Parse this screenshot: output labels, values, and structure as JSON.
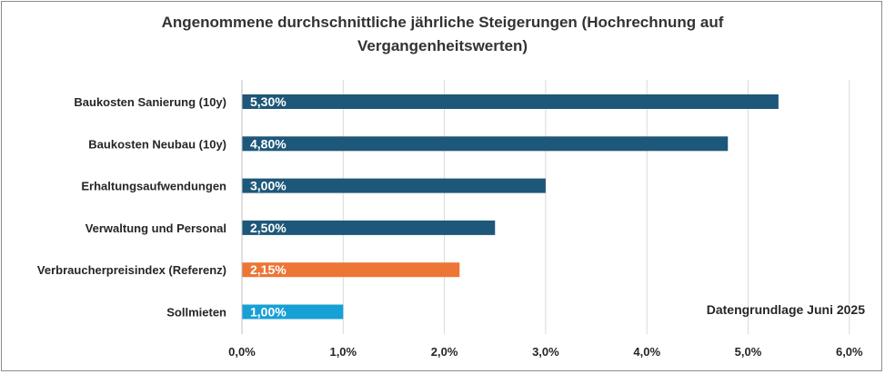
{
  "chart_data": {
    "type": "bar",
    "orientation": "horizontal",
    "title_lines": [
      "Angenommene durchschnittliche jährliche Steigerungen (Hochrechnung auf",
      "Vergangenheitswerten)"
    ],
    "categories": [
      "Baukosten Sanierung (10y)",
      "Baukosten Neubau (10y)",
      "Erhaltungsaufwendungen",
      "Verwaltung und Personal",
      "Verbraucherpreisindex (Referenz)",
      "Sollmieten"
    ],
    "values": [
      5.3,
      4.8,
      3.0,
      2.5,
      2.15,
      1.0
    ],
    "data_labels": [
      "5,30%",
      "4,80%",
      "3,00%",
      "2,50%",
      "2,15%",
      "1,00%"
    ],
    "colors": [
      "#1d5779",
      "#1d5779",
      "#1d5779",
      "#1d5779",
      "#ed7535",
      "#17a0d6"
    ],
    "x_ticks": [
      0,
      1,
      2,
      3,
      4,
      5,
      6
    ],
    "x_tick_labels": [
      "0,0%",
      "1,0%",
      "2,0%",
      "3,0%",
      "4,0%",
      "5,0%",
      "6,0%"
    ],
    "xlim": [
      0,
      6
    ],
    "grid": true,
    "xlabel": "",
    "ylabel": "",
    "annotation": "Datengrundlage Juni 2025"
  }
}
